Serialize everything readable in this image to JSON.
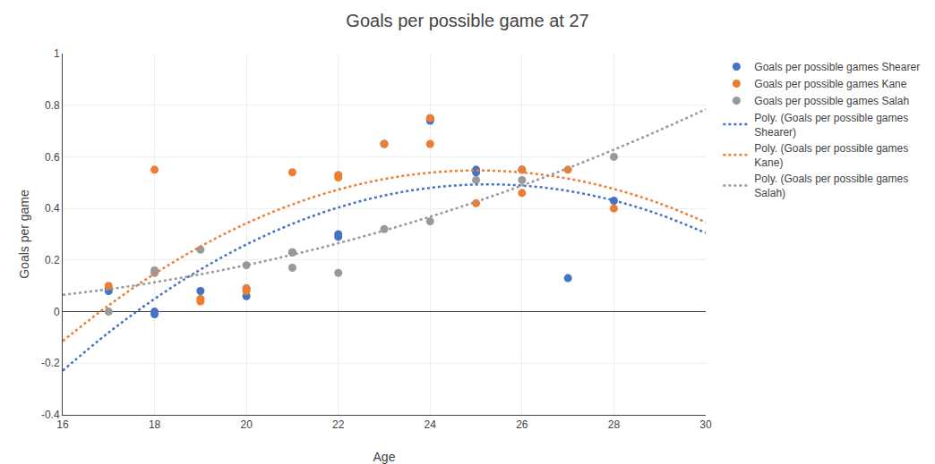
{
  "chart_data": {
    "type": "scatter",
    "title": "Goals per possible game at 27",
    "xlabel": "Age",
    "ylabel": "Goals per game",
    "xlim": [
      16,
      30
    ],
    "ylim": [
      -0.4,
      1.0
    ],
    "xticks": [
      16,
      18,
      20,
      22,
      24,
      26,
      28,
      30
    ],
    "yticks": [
      -0.4,
      -0.2,
      0,
      0.2,
      0.4,
      0.6,
      0.8,
      1
    ],
    "grid": true,
    "legend": "right",
    "series": [
      {
        "name": "Goals per possible games Shearer",
        "type": "scatter",
        "marker": "circle",
        "color": "#4472C4",
        "x": [
          17,
          17,
          18,
          18,
          19,
          20,
          20,
          21,
          22,
          22,
          23,
          24,
          24,
          25,
          25,
          26,
          27,
          28
        ],
        "values": [
          0.09,
          0.08,
          0.0,
          -0.01,
          0.08,
          0.09,
          0.06,
          0.23,
          0.3,
          0.29,
          0.65,
          0.75,
          0.74,
          0.55,
          0.54,
          0.55,
          0.13,
          0.43
        ]
      },
      {
        "name": "Goals per possible games Kane",
        "type": "scatter",
        "marker": "circle",
        "color": "#ED7D31",
        "x": [
          17,
          18,
          19,
          19,
          20,
          20,
          21,
          22,
          22,
          23,
          24,
          24,
          25,
          26,
          26,
          27,
          28
        ],
        "values": [
          0.1,
          0.55,
          0.05,
          0.04,
          0.08,
          0.09,
          0.54,
          0.53,
          0.52,
          0.65,
          0.75,
          0.65,
          0.42,
          0.46,
          0.55,
          0.55,
          0.4
        ]
      },
      {
        "name": "Goals per possible games Salah",
        "type": "scatter",
        "marker": "circle",
        "color": "#999999",
        "x": [
          17,
          18,
          18,
          19,
          20,
          21,
          21,
          22,
          23,
          24,
          25,
          26,
          28
        ],
        "values": [
          0.0,
          0.15,
          0.16,
          0.24,
          0.18,
          0.17,
          0.23,
          0.15,
          0.32,
          0.35,
          0.51,
          0.51,
          0.6
        ]
      },
      {
        "name": "Poly. (Goals per possible games\nShearer)",
        "type": "line",
        "line_style": "dotted",
        "color": "#4472C4",
        "x": [
          16,
          17,
          18,
          19,
          20,
          21,
          22,
          23,
          24,
          25,
          26,
          27,
          28,
          29,
          30
        ],
        "values": [
          -0.2286,
          -0.0812,
          0.0494,
          0.1632,
          0.2601,
          0.3403,
          0.4036,
          0.4501,
          0.4798,
          0.4927,
          0.4888,
          0.468,
          0.4305,
          0.3761,
          0.3049
        ]
      },
      {
        "name": "Poly. (Goals per possible games\nKane)",
        "type": "line",
        "line_style": "dotted",
        "color": "#ED7D31",
        "x": [
          16,
          17,
          18,
          19,
          20,
          21,
          22,
          23,
          24,
          25,
          26,
          27,
          28,
          29,
          30
        ],
        "values": [
          -0.114,
          0.0244,
          0.1465,
          0.2525,
          0.3422,
          0.4156,
          0.4729,
          0.5139,
          0.5387,
          0.5472,
          0.5395,
          0.5156,
          0.4755,
          0.4191,
          0.3465
        ]
      },
      {
        "name": "Poly. (Goals per possible games\nSalah)",
        "type": "line",
        "line_style": "dotted",
        "color": "#999999",
        "x": [
          16,
          17,
          18,
          19,
          20,
          21,
          22,
          23,
          24,
          25,
          26,
          27,
          28,
          29,
          30
        ],
        "values": [
          0.0649,
          0.087,
          0.1136,
          0.1447,
          0.1803,
          0.2205,
          0.2651,
          0.3143,
          0.3679,
          0.4261,
          0.4888,
          0.556,
          0.6276,
          0.7038,
          0.7845
        ]
      }
    ]
  }
}
